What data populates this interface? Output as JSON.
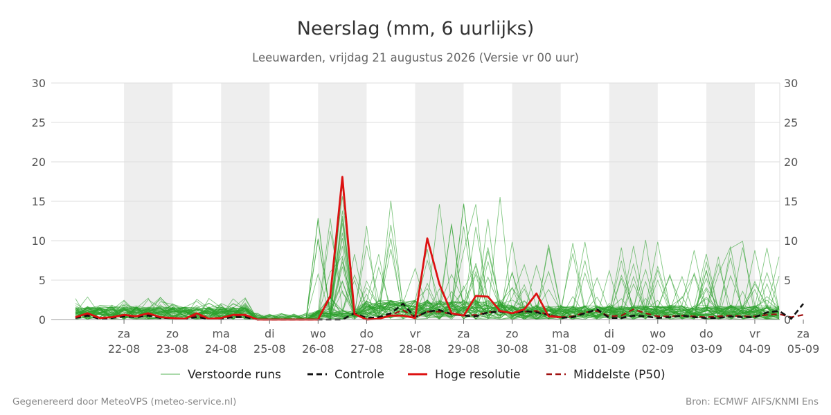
{
  "chart_data": {
    "type": "line",
    "title": "Neerslag (mm, 6 uurlijks)",
    "subtitle": "Leeuwarden, vrijdag 21 augustus 2026 (Versie vr 00 uur)",
    "ylim": [
      0,
      30
    ],
    "yticks": [
      0,
      5,
      10,
      15,
      20,
      25,
      30
    ],
    "x_range": [
      -3,
      174
    ],
    "x_ticks": [
      {
        "day": "za",
        "date": "22-08",
        "h": 12
      },
      {
        "day": "zo",
        "date": "23-08",
        "h": 24
      },
      {
        "day": "ma",
        "date": "24-08",
        "h": 36
      },
      {
        "day": "di",
        "date": "25-08",
        "h": 48
      },
      {
        "day": "wo",
        "date": "26-08",
        "h": 60
      },
      {
        "day": "do",
        "date": "27-08",
        "h": 72
      },
      {
        "day": "vr",
        "date": "28-08",
        "h": 84
      },
      {
        "day": "za",
        "date": "29-08",
        "h": 96
      },
      {
        "day": "zo",
        "date": "30-08",
        "h": 108
      },
      {
        "day": "ma",
        "date": "31-08",
        "h": 120
      },
      {
        "day": "di",
        "date": "01-09",
        "h": 132
      },
      {
        "day": "wo",
        "date": "02-09",
        "h": 144
      },
      {
        "day": "do",
        "date": "03-09",
        "h": 156
      },
      {
        "day": "vr",
        "date": "04-09",
        "h": 168
      },
      {
        "day": "za",
        "date": "05-09",
        "h": 180
      }
    ],
    "shaded_bands": [
      [
        12,
        24
      ],
      [
        36,
        48
      ],
      [
        60,
        72
      ],
      [
        84,
        96
      ],
      [
        108,
        120
      ],
      [
        132,
        144
      ],
      [
        156,
        168
      ]
    ],
    "grid": true,
    "legend_position": "bottom",
    "colors": {
      "ensemble": "#2ca02c",
      "control": "#111111",
      "highres": "#dd1111",
      "median": "#a01010",
      "band": "#eeeeee",
      "grid": "#dddddd"
    },
    "series": [
      {
        "name": "Hoge resolutie",
        "style": "highres",
        "x": [
          0,
          3,
          6,
          9,
          12,
          15,
          18,
          21,
          24,
          27,
          30,
          33,
          36,
          39,
          42,
          45,
          48,
          51,
          54,
          57,
          60,
          63,
          66,
          69,
          72,
          75,
          78,
          81,
          84,
          87,
          90,
          93,
          96,
          99,
          102,
          105,
          108,
          111,
          114,
          117,
          120
        ],
        "y": [
          0.3,
          0.8,
          0.2,
          0.3,
          0.6,
          0.4,
          0.8,
          0.3,
          0.2,
          0.1,
          0.8,
          0.1,
          0.2,
          0.6,
          0.6,
          0,
          0,
          0,
          0,
          0,
          0,
          3,
          18.1,
          0.7,
          0,
          0.1,
          0.5,
          0.5,
          0.2,
          10.3,
          4.5,
          0.8,
          0.5,
          3,
          2.9,
          1.1,
          0.8,
          1.3,
          3.3,
          0.4,
          0.3
        ]
      },
      {
        "name": "Controle",
        "style": "control",
        "x": [
          0,
          3,
          6,
          9,
          12,
          15,
          18,
          21,
          24,
          27,
          30,
          33,
          36,
          39,
          42,
          45,
          48,
          51,
          54,
          57,
          60,
          63,
          66,
          69,
          72,
          75,
          78,
          81,
          84,
          87,
          90,
          93,
          96,
          99,
          102,
          105,
          108,
          111,
          114,
          117,
          120,
          123,
          126,
          129,
          132,
          135,
          138,
          141,
          144,
          147,
          150,
          153,
          156,
          159,
          162,
          165,
          168,
          171,
          174,
          177,
          180
        ],
        "y": [
          0.2,
          0.5,
          0.1,
          0.2,
          0.4,
          0.3,
          0.5,
          0.2,
          0.2,
          0.1,
          0.3,
          0.1,
          0.1,
          0.3,
          0.3,
          0,
          0,
          0,
          0,
          0,
          0,
          0,
          0,
          0.8,
          0.2,
          0.3,
          0.8,
          2,
          0.3,
          1,
          1.2,
          0.7,
          0.5,
          0.4,
          0.9,
          1,
          0.8,
          1.1,
          0.9,
          0.6,
          0.2,
          0.3,
          0.8,
          1.3,
          0.2,
          0.2,
          0.5,
          0.4,
          0.2,
          0.3,
          0.5,
          0.3,
          0.2,
          0.2,
          0.4,
          0.3,
          0.3,
          0.9,
          1.1,
          0.1,
          2
        ]
      },
      {
        "name": "Middelste (P50)",
        "style": "median",
        "x": [
          0,
          3,
          6,
          9,
          12,
          15,
          18,
          21,
          24,
          27,
          30,
          33,
          36,
          39,
          42,
          45,
          48,
          51,
          54,
          57,
          60,
          63,
          66,
          69,
          72,
          75,
          78,
          81,
          84,
          87,
          90,
          93,
          96,
          99,
          102,
          105,
          108,
          111,
          114,
          117,
          120,
          123,
          126,
          129,
          132,
          135,
          138,
          141,
          144,
          147,
          150,
          153,
          156,
          159,
          162,
          165,
          168,
          171,
          174,
          177,
          180
        ],
        "y": [
          0.3,
          0.6,
          0.2,
          0.3,
          0.5,
          0.4,
          0.7,
          0.3,
          0.2,
          0.1,
          0.5,
          0.1,
          0.2,
          0.5,
          0.5,
          0,
          0,
          0,
          0,
          0,
          0,
          2.8,
          17.8,
          0.7,
          0.1,
          0.2,
          0.6,
          1.2,
          0.3,
          1,
          1,
          0.7,
          0.5,
          0.6,
          0.9,
          1.1,
          0.8,
          1,
          1.1,
          0.6,
          0.3,
          0.4,
          0.9,
          1.1,
          0.4,
          0.5,
          1.3,
          0.8,
          0.4,
          0.4,
          0.5,
          0.4,
          0.3,
          0.4,
          0.5,
          0.4,
          0.4,
          0.6,
          0.7,
          0.3,
          0.6
        ]
      }
    ],
    "legend": [
      {
        "label": "Verstoorde runs",
        "style": "ensemble"
      },
      {
        "label": "Controle",
        "style": "control"
      },
      {
        "label": "Hoge resolutie",
        "style": "highres"
      },
      {
        "label": "Middelste (P50)",
        "style": "median"
      }
    ]
  },
  "footer": {
    "left": "Gegenereerd door MeteoVPS (meteo-service.nl)",
    "right": "Bron: ECMWF AIFS/KNMI Ens"
  }
}
